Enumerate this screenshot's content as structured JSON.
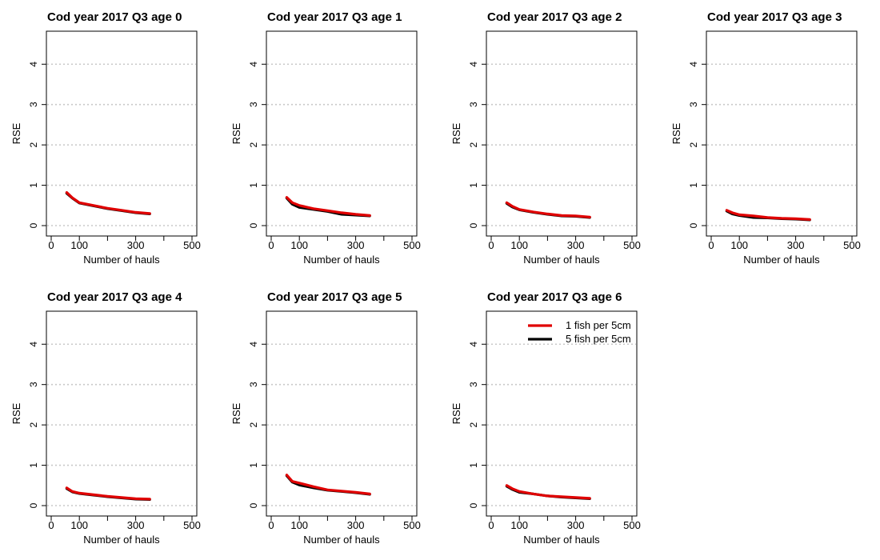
{
  "chart_data": [
    {
      "type": "line",
      "title": "Cod year 2017 Q3 age 0",
      "xlabel": "Number of hauls",
      "ylabel": "RSE",
      "xlim": [
        0,
        500
      ],
      "ylim": [
        0,
        4.6
      ],
      "xticks": [
        0,
        100,
        300,
        500
      ],
      "yticks": [
        0,
        1,
        2,
        3,
        4
      ],
      "grid": "horizontal dotted",
      "series": [
        {
          "name": "",
          "color": "#e00000",
          "x": [
            55,
            75,
            100,
            150,
            200,
            250,
            300,
            350
          ],
          "y": [
            0.82,
            0.69,
            0.57,
            0.5,
            0.43,
            0.38,
            0.33,
            0.3
          ]
        },
        {
          "name": "",
          "color": "#000000",
          "x": [
            55,
            75,
            100,
            150,
            200,
            250,
            300,
            350
          ],
          "y": [
            0.8,
            0.68,
            0.56,
            0.49,
            0.42,
            0.37,
            0.32,
            0.29
          ]
        }
      ]
    },
    {
      "type": "line",
      "title": "Cod year 2017 Q3 age 1",
      "xlabel": "Number of hauls",
      "ylabel": "RSE",
      "xlim": [
        0,
        500
      ],
      "ylim": [
        0,
        4.6
      ],
      "xticks": [
        0,
        100,
        300,
        500
      ],
      "yticks": [
        0,
        1,
        2,
        3,
        4
      ],
      "grid": "horizontal dotted",
      "series": [
        {
          "name": "",
          "color": "#e00000",
          "x": [
            55,
            75,
            100,
            150,
            200,
            250,
            300,
            350
          ],
          "y": [
            0.7,
            0.57,
            0.5,
            0.42,
            0.37,
            0.32,
            0.28,
            0.25
          ]
        },
        {
          "name": "",
          "color": "#000000",
          "x": [
            55,
            75,
            100,
            150,
            200,
            250,
            300,
            350
          ],
          "y": [
            0.68,
            0.53,
            0.45,
            0.4,
            0.35,
            0.28,
            0.26,
            0.24
          ]
        }
      ]
    },
    {
      "type": "line",
      "title": "Cod year 2017 Q3 age 2",
      "xlabel": "Number of hauls",
      "ylabel": "RSE",
      "xlim": [
        0,
        500
      ],
      "ylim": [
        0,
        4.6
      ],
      "xticks": [
        0,
        100,
        300,
        500
      ],
      "yticks": [
        0,
        1,
        2,
        3,
        4
      ],
      "grid": "horizontal dotted",
      "series": [
        {
          "name": "",
          "color": "#e00000",
          "x": [
            55,
            75,
            100,
            150,
            200,
            250,
            300,
            350
          ],
          "y": [
            0.57,
            0.48,
            0.4,
            0.34,
            0.29,
            0.25,
            0.24,
            0.21
          ]
        },
        {
          "name": "",
          "color": "#000000",
          "x": [
            55,
            75,
            100,
            150,
            200,
            250,
            300,
            350
          ],
          "y": [
            0.55,
            0.46,
            0.39,
            0.33,
            0.28,
            0.24,
            0.23,
            0.2
          ]
        }
      ]
    },
    {
      "type": "line",
      "title": "Cod year 2017 Q3 age 3",
      "xlabel": "Number of hauls",
      "ylabel": "RSE",
      "xlim": [
        0,
        500
      ],
      "ylim": [
        0,
        4.6
      ],
      "xticks": [
        0,
        100,
        300,
        500
      ],
      "yticks": [
        0,
        1,
        2,
        3,
        4
      ],
      "grid": "horizontal dotted",
      "series": [
        {
          "name": "",
          "color": "#e00000",
          "x": [
            55,
            75,
            100,
            150,
            200,
            250,
            300,
            350
          ],
          "y": [
            0.38,
            0.32,
            0.27,
            0.24,
            0.2,
            0.18,
            0.17,
            0.15
          ]
        },
        {
          "name": "",
          "color": "#000000",
          "x": [
            55,
            75,
            100,
            150,
            200,
            250,
            300,
            350
          ],
          "y": [
            0.36,
            0.29,
            0.25,
            0.2,
            0.19,
            0.17,
            0.16,
            0.14
          ]
        }
      ]
    },
    {
      "type": "line",
      "title": "Cod year 2017 Q3 age 4",
      "xlabel": "Number of hauls",
      "ylabel": "RSE",
      "xlim": [
        0,
        500
      ],
      "ylim": [
        0,
        4.6
      ],
      "xticks": [
        0,
        100,
        300,
        500
      ],
      "yticks": [
        0,
        1,
        2,
        3,
        4
      ],
      "grid": "horizontal dotted",
      "series": [
        {
          "name": "",
          "color": "#e00000",
          "x": [
            55,
            75,
            100,
            150,
            200,
            250,
            300,
            350
          ],
          "y": [
            0.44,
            0.35,
            0.31,
            0.27,
            0.23,
            0.2,
            0.17,
            0.16
          ]
        },
        {
          "name": "",
          "color": "#000000",
          "x": [
            55,
            75,
            100,
            150,
            200,
            250,
            300,
            350
          ],
          "y": [
            0.42,
            0.34,
            0.3,
            0.26,
            0.22,
            0.19,
            0.16,
            0.15
          ]
        }
      ]
    },
    {
      "type": "line",
      "title": "Cod year 2017 Q3 age 5",
      "xlabel": "Number of hauls",
      "ylabel": "RSE",
      "xlim": [
        0,
        500
      ],
      "ylim": [
        0,
        4.6
      ],
      "xticks": [
        0,
        100,
        300,
        500
      ],
      "yticks": [
        0,
        1,
        2,
        3,
        4
      ],
      "grid": "horizontal dotted",
      "series": [
        {
          "name": "",
          "color": "#e00000",
          "x": [
            55,
            75,
            100,
            150,
            200,
            250,
            300,
            350
          ],
          "y": [
            0.76,
            0.6,
            0.56,
            0.47,
            0.39,
            0.36,
            0.33,
            0.29
          ]
        },
        {
          "name": "",
          "color": "#000000",
          "x": [
            55,
            75,
            100,
            150,
            200,
            250,
            300,
            350
          ],
          "y": [
            0.74,
            0.58,
            0.51,
            0.44,
            0.38,
            0.35,
            0.32,
            0.28
          ]
        }
      ]
    },
    {
      "type": "line",
      "title": "Cod year 2017 Q3 age 6",
      "xlabel": "Number of hauls",
      "ylabel": "RSE",
      "xlim": [
        0,
        500
      ],
      "ylim": [
        0,
        4.6
      ],
      "xticks": [
        0,
        100,
        300,
        500
      ],
      "yticks": [
        0,
        1,
        2,
        3,
        4
      ],
      "grid": "horizontal dotted",
      "legend": "top-right",
      "series": [
        {
          "name": "1 fish per 5cm",
          "color": "#e00000",
          "x": [
            55,
            75,
            100,
            150,
            200,
            250,
            300,
            350
          ],
          "y": [
            0.5,
            0.42,
            0.35,
            0.29,
            0.24,
            0.22,
            0.2,
            0.18
          ]
        },
        {
          "name": "5 fish per 5cm",
          "color": "#000000",
          "x": [
            55,
            75,
            100,
            150,
            200,
            250,
            300,
            350
          ],
          "y": [
            0.48,
            0.4,
            0.33,
            0.29,
            0.24,
            0.21,
            0.19,
            0.17
          ]
        }
      ]
    }
  ]
}
